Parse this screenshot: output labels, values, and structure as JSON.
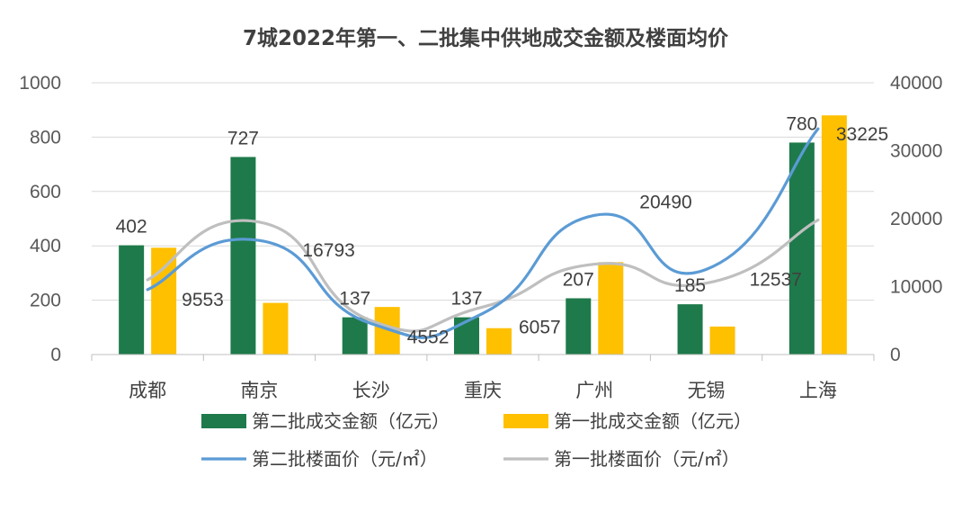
{
  "chart_data": {
    "type": "bar",
    "title": "7城2022年第一、二批集中供地成交金额及楼面均价",
    "categories": [
      "成都",
      "南京",
      "长沙",
      "重庆",
      "广州",
      "无锡",
      "上海"
    ],
    "y_left": {
      "min": 0,
      "max": 1000,
      "ticks": [
        "0",
        "200",
        "400",
        "600",
        "800",
        "1000"
      ]
    },
    "y_right": {
      "min": 0,
      "max": 40000,
      "ticks": [
        "0",
        "10000",
        "20000",
        "30000",
        "40000"
      ]
    },
    "series": [
      {
        "name": "第二批成交金额（亿元）",
        "kind": "bar",
        "axis": "left",
        "color": "#1e7a4a",
        "values": [
          402,
          727,
          137,
          137,
          207,
          185,
          780
        ],
        "labels": [
          "402",
          "727",
          "137",
          "137",
          "207",
          "185",
          "780"
        ]
      },
      {
        "name": "第一批成交金额（亿元）",
        "kind": "bar",
        "axis": "left",
        "color": "#ffc000",
        "values": [
          393,
          190,
          175,
          97,
          340,
          103,
          880
        ]
      },
      {
        "name": "第二批楼面价（元/㎡）",
        "kind": "line",
        "axis": "right",
        "color": "#5b9bd5",
        "values": [
          9553,
          16793,
          4552,
          6057,
          20490,
          12537,
          33225
        ],
        "labels": [
          "9553",
          "16793",
          "4552",
          "6057",
          "20490",
          "12537",
          "33225"
        ]
      },
      {
        "name": "第一批楼面价（元/㎡）",
        "kind": "line",
        "axis": "right",
        "color": "#bfbfbf",
        "values": [
          11000,
          19500,
          5000,
          7000,
          13300,
          10500,
          19800
        ]
      }
    ],
    "grid": true,
    "legend_position": "bottom"
  }
}
